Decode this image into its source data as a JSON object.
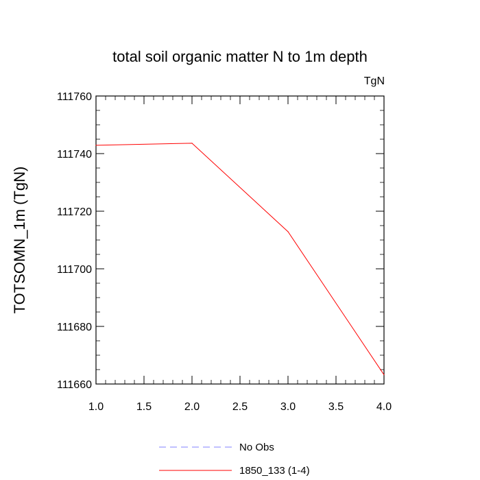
{
  "chart_data": {
    "type": "line",
    "title": "total soil organic matter N to 1m depth",
    "subtitle": "TgN",
    "xlabel": "",
    "ylabel": "TOTSOMN_1m  (TgN)",
    "xlim": [
      1.0,
      4.0
    ],
    "ylim": [
      111660,
      111760
    ],
    "x_ticks": [
      "1.0",
      "1.5",
      "2.0",
      "2.5",
      "3.0",
      "3.5",
      "4.0"
    ],
    "y_ticks": [
      "111660",
      "111680",
      "111700",
      "111720",
      "111740",
      "111760"
    ],
    "grid": false,
    "legend_position": "bottom",
    "series": [
      {
        "name": "1850_133 (1-4)",
        "color": "#ff0000",
        "style": "solid",
        "x": [
          1,
          2,
          3,
          4
        ],
        "values": [
          111742.9,
          111743.6,
          111712.9,
          111663.2
        ]
      }
    ],
    "legend": [
      {
        "label": "No Obs",
        "color": "#8080ff",
        "style": "dashed"
      },
      {
        "label": "1850_133 (1-4)",
        "color": "#ff0000",
        "style": "solid"
      }
    ]
  }
}
